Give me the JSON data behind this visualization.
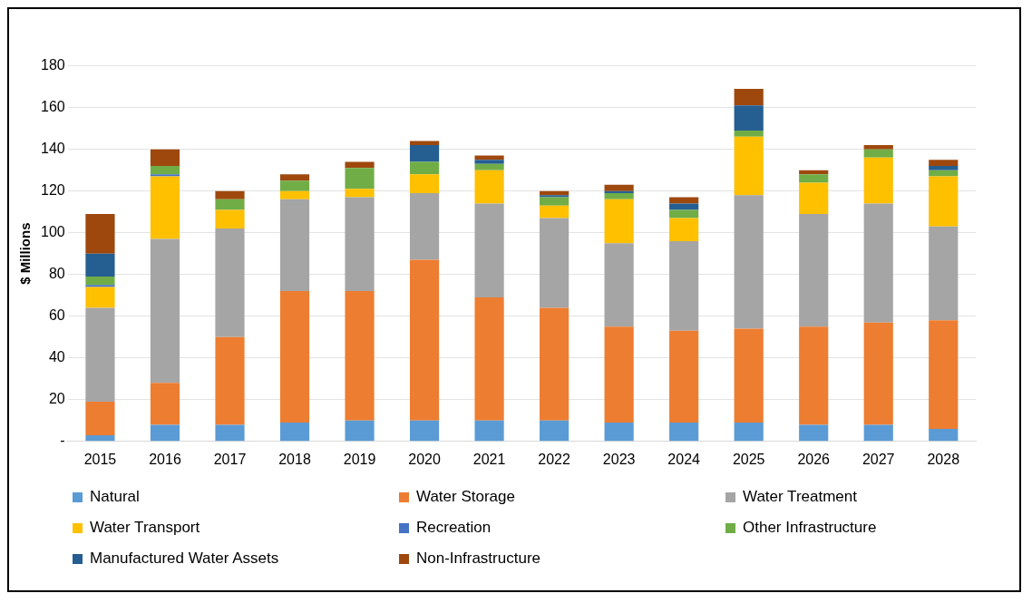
{
  "chart_data": {
    "type": "bar",
    "stacked": true,
    "ylabel": "$ Millions",
    "categories": [
      "2015",
      "2016",
      "2017",
      "2018",
      "2019",
      "2020",
      "2021",
      "2022",
      "2023",
      "2024",
      "2025",
      "2026",
      "2027",
      "2028"
    ],
    "series": [
      {
        "name": "Natural",
        "color": "#5b9bd5",
        "values": [
          3,
          8,
          8,
          9,
          10,
          10,
          10,
          10,
          9,
          9,
          9,
          8,
          8,
          6
        ]
      },
      {
        "name": "Water Storage",
        "color": "#ed7d31",
        "values": [
          16,
          20,
          42,
          63,
          62,
          77,
          59,
          54,
          46,
          44,
          45,
          47,
          49,
          52
        ]
      },
      {
        "name": "Water Treatment",
        "color": "#a5a5a5",
        "values": [
          45,
          69,
          52,
          44,
          45,
          32,
          45,
          43,
          40,
          43,
          64,
          54,
          57,
          45
        ]
      },
      {
        "name": "Water Transport",
        "color": "#ffc000",
        "values": [
          10,
          30,
          9,
          4,
          4,
          9,
          16,
          6,
          21,
          11,
          28,
          15,
          22,
          24
        ]
      },
      {
        "name": "Recreation",
        "color": "#4472c4",
        "values": [
          1,
          1,
          0,
          0,
          0,
          0,
          0,
          0,
          0,
          0,
          0,
          0,
          0,
          0
        ]
      },
      {
        "name": "Other Infrastructure",
        "color": "#70ad47",
        "values": [
          4,
          4,
          5,
          5,
          10,
          6,
          3,
          4,
          3,
          4,
          3,
          4,
          4,
          3
        ]
      },
      {
        "name": "Manufactured Water Assets",
        "color": "#255e91",
        "values": [
          11,
          0,
          0,
          0,
          0,
          8,
          2,
          1,
          1,
          3,
          12,
          0,
          0,
          2
        ]
      },
      {
        "name": "Non-Infrastructure",
        "color": "#9e480e",
        "values": [
          19,
          8,
          4,
          3,
          3,
          2,
          2,
          2,
          3,
          3,
          8,
          2,
          2,
          3
        ]
      }
    ],
    "ylim": [
      0,
      180
    ],
    "yticks": [
      {
        "value": 0,
        "label": "-"
      },
      20,
      40,
      60,
      80,
      100,
      120,
      140,
      160,
      180
    ],
    "grid": "y",
    "legend": "bottom"
  }
}
